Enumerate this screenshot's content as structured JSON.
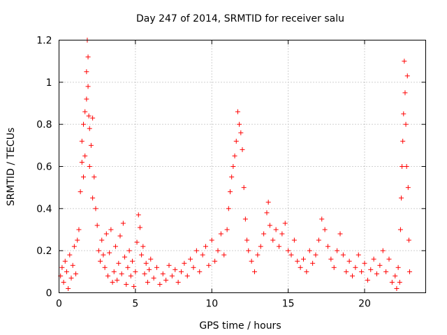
{
  "chart_data": {
    "type": "scatter",
    "title": "Day 247 of 2014, SRMTID for receiver salu",
    "xlabel": "GPS time / hours",
    "ylabel": "SRMTID / TECUs",
    "xlim": [
      0,
      24
    ],
    "ylim": [
      0,
      1.2
    ],
    "xticks": [
      0,
      5,
      10,
      15,
      20
    ],
    "yticks": [
      0,
      0.2,
      0.4,
      0.6,
      0.8,
      1,
      1.2
    ],
    "grid": true,
    "marker": "+",
    "color": "#ff0000",
    "series": [
      {
        "name": "SRMTID",
        "points": [
          [
            0.1,
            0.08
          ],
          [
            0.2,
            0.12
          ],
          [
            0.3,
            0.05
          ],
          [
            0.4,
            0.15
          ],
          [
            0.5,
            0.1
          ],
          [
            0.6,
            0.02
          ],
          [
            0.7,
            0.18
          ],
          [
            0.8,
            0.07
          ],
          [
            0.9,
            0.13
          ],
          [
            1.0,
            0.22
          ],
          [
            1.1,
            0.09
          ],
          [
            1.2,
            0.25
          ],
          [
            1.3,
            0.3
          ],
          [
            1.4,
            0.48
          ],
          [
            1.5,
            0.62
          ],
          [
            1.5,
            0.72
          ],
          [
            1.6,
            0.55
          ],
          [
            1.6,
            0.8
          ],
          [
            1.7,
            0.65
          ],
          [
            1.7,
            0.86
          ],
          [
            1.8,
            0.92
          ],
          [
            1.8,
            1.05
          ],
          [
            1.85,
            1.2
          ],
          [
            1.9,
            1.12
          ],
          [
            1.9,
            0.98
          ],
          [
            1.95,
            0.84
          ],
          [
            2.0,
            0.78
          ],
          [
            2.0,
            0.6
          ],
          [
            2.1,
            0.7
          ],
          [
            2.2,
            0.83
          ],
          [
            2.2,
            0.45
          ],
          [
            2.3,
            0.55
          ],
          [
            2.4,
            0.4
          ],
          [
            2.5,
            0.32
          ],
          [
            2.6,
            0.2
          ],
          [
            2.7,
            0.15
          ],
          [
            2.8,
            0.25
          ],
          [
            2.9,
            0.18
          ],
          [
            3.0,
            0.12
          ],
          [
            3.1,
            0.28
          ],
          [
            3.2,
            0.08
          ],
          [
            3.3,
            0.19
          ],
          [
            3.4,
            0.3
          ],
          [
            3.5,
            0.05
          ],
          [
            3.6,
            0.1
          ],
          [
            3.7,
            0.22
          ],
          [
            3.8,
            0.06
          ],
          [
            3.9,
            0.14
          ],
          [
            4.0,
            0.27
          ],
          [
            4.1,
            0.09
          ],
          [
            4.2,
            0.33
          ],
          [
            4.3,
            0.17
          ],
          [
            4.4,
            0.04
          ],
          [
            4.5,
            0.12
          ],
          [
            4.6,
            0.2
          ],
          [
            4.7,
            0.08
          ],
          [
            4.8,
            0.15
          ],
          [
            4.9,
            0.03
          ],
          [
            5.0,
            0.1
          ],
          [
            5.1,
            0.24
          ],
          [
            5.2,
            0.37
          ],
          [
            5.3,
            0.31
          ],
          [
            5.4,
            0.18
          ],
          [
            5.5,
            0.22
          ],
          [
            5.6,
            0.09
          ],
          [
            5.7,
            0.14
          ],
          [
            5.8,
            0.05
          ],
          [
            5.9,
            0.11
          ],
          [
            6.0,
            0.16
          ],
          [
            6.2,
            0.07
          ],
          [
            6.4,
            0.12
          ],
          [
            6.6,
            0.04
          ],
          [
            6.8,
            0.09
          ],
          [
            7.0,
            0.06
          ],
          [
            7.2,
            0.13
          ],
          [
            7.4,
            0.08
          ],
          [
            7.6,
            0.11
          ],
          [
            7.8,
            0.05
          ],
          [
            8.0,
            0.1
          ],
          [
            8.2,
            0.14
          ],
          [
            8.4,
            0.08
          ],
          [
            8.6,
            0.16
          ],
          [
            8.8,
            0.12
          ],
          [
            9.0,
            0.2
          ],
          [
            9.2,
            0.1
          ],
          [
            9.4,
            0.18
          ],
          [
            9.6,
            0.22
          ],
          [
            9.8,
            0.13
          ],
          [
            10.0,
            0.25
          ],
          [
            10.2,
            0.15
          ],
          [
            10.4,
            0.2
          ],
          [
            10.6,
            0.28
          ],
          [
            10.8,
            0.18
          ],
          [
            11.0,
            0.3
          ],
          [
            11.1,
            0.4
          ],
          [
            11.2,
            0.48
          ],
          [
            11.3,
            0.55
          ],
          [
            11.4,
            0.6
          ],
          [
            11.5,
            0.65
          ],
          [
            11.6,
            0.72
          ],
          [
            11.7,
            0.86
          ],
          [
            11.8,
            0.8
          ],
          [
            11.9,
            0.76
          ],
          [
            12.0,
            0.68
          ],
          [
            12.1,
            0.5
          ],
          [
            12.2,
            0.35
          ],
          [
            12.3,
            0.25
          ],
          [
            12.4,
            0.2
          ],
          [
            12.6,
            0.15
          ],
          [
            12.8,
            0.1
          ],
          [
            13.0,
            0.18
          ],
          [
            13.2,
            0.22
          ],
          [
            13.4,
            0.28
          ],
          [
            13.6,
            0.38
          ],
          [
            13.7,
            0.43
          ],
          [
            13.8,
            0.32
          ],
          [
            14.0,
            0.25
          ],
          [
            14.2,
            0.3
          ],
          [
            14.4,
            0.22
          ],
          [
            14.6,
            0.28
          ],
          [
            14.8,
            0.33
          ],
          [
            15.0,
            0.2
          ],
          [
            15.2,
            0.18
          ],
          [
            15.4,
            0.25
          ],
          [
            15.6,
            0.15
          ],
          [
            15.8,
            0.12
          ],
          [
            16.0,
            0.16
          ],
          [
            16.2,
            0.1
          ],
          [
            16.4,
            0.2
          ],
          [
            16.6,
            0.14
          ],
          [
            16.8,
            0.18
          ],
          [
            17.0,
            0.25
          ],
          [
            17.2,
            0.35
          ],
          [
            17.4,
            0.3
          ],
          [
            17.6,
            0.22
          ],
          [
            17.8,
            0.16
          ],
          [
            18.0,
            0.12
          ],
          [
            18.2,
            0.2
          ],
          [
            18.4,
            0.28
          ],
          [
            18.6,
            0.18
          ],
          [
            18.8,
            0.1
          ],
          [
            19.0,
            0.15
          ],
          [
            19.2,
            0.08
          ],
          [
            19.4,
            0.12
          ],
          [
            19.6,
            0.18
          ],
          [
            19.8,
            0.1
          ],
          [
            20.0,
            0.14
          ],
          [
            20.2,
            0.06
          ],
          [
            20.4,
            0.11
          ],
          [
            20.6,
            0.16
          ],
          [
            20.8,
            0.09
          ],
          [
            21.0,
            0.13
          ],
          [
            21.2,
            0.2
          ],
          [
            21.4,
            0.1
          ],
          [
            21.6,
            0.16
          ],
          [
            21.8,
            0.05
          ],
          [
            22.0,
            0.08
          ],
          [
            22.1,
            0.02
          ],
          [
            22.2,
            0.12
          ],
          [
            22.3,
            0.05
          ],
          [
            22.35,
            0.3
          ],
          [
            22.4,
            0.45
          ],
          [
            22.45,
            0.6
          ],
          [
            22.5,
            0.72
          ],
          [
            22.55,
            0.85
          ],
          [
            22.6,
            1.1
          ],
          [
            22.65,
            0.95
          ],
          [
            22.7,
            0.8
          ],
          [
            22.75,
            0.6
          ],
          [
            22.8,
            1.03
          ],
          [
            22.85,
            0.5
          ],
          [
            22.9,
            0.25
          ],
          [
            22.95,
            0.1
          ]
        ]
      }
    ]
  }
}
